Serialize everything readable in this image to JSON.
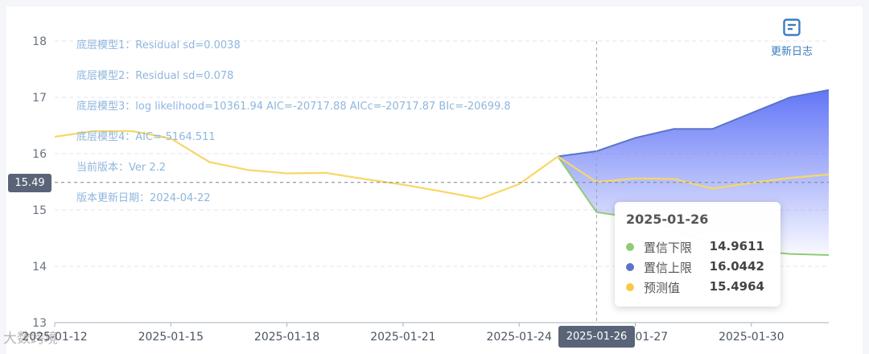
{
  "chart_data": {
    "type": "line",
    "x_ticks": [
      "2025-01-12",
      "2025-01-15",
      "2025-01-18",
      "2025-01-21",
      "2025-01-24",
      "2025-01-27",
      "2025-01-30"
    ],
    "y_ticks": [
      13,
      14,
      15,
      16,
      17,
      18
    ],
    "ylim": [
      13,
      18
    ],
    "xlim": [
      "2025-01-12",
      "2025-02-01"
    ],
    "series": [
      {
        "name": "预测值",
        "color": "#f7d766",
        "x": [
          "2025-01-12",
          "2025-01-13",
          "2025-01-14",
          "2025-01-15",
          "2025-01-16",
          "2025-01-17",
          "2025-01-18",
          "2025-01-19",
          "2025-01-20",
          "2025-01-21",
          "2025-01-22",
          "2025-01-23",
          "2025-01-24",
          "2025-01-25",
          "2025-01-26",
          "2025-01-27",
          "2025-01-28",
          "2025-01-29",
          "2025-01-30",
          "2025-01-31",
          "2025-02-01"
        ],
        "y": [
          16.3,
          16.4,
          16.4,
          16.27,
          15.85,
          15.71,
          15.65,
          15.66,
          15.55,
          15.45,
          15.33,
          15.2,
          15.46,
          15.95,
          15.4964,
          15.56,
          15.55,
          15.38,
          15.48,
          15.57,
          15.63
        ]
      },
      {
        "name": "置信上限",
        "color": "#5b74c9",
        "x": [
          "2025-01-25",
          "2025-01-26",
          "2025-01-27",
          "2025-01-28",
          "2025-01-29",
          "2025-01-30",
          "2025-01-31",
          "2025-02-01"
        ],
        "y": [
          15.95,
          16.0442,
          16.28,
          16.44,
          16.44,
          16.72,
          17.0,
          17.13
        ]
      },
      {
        "name": "置信下限",
        "color": "#91cc75",
        "x": [
          "2025-01-25",
          "2025-01-26",
          "2025-01-27",
          "2025-01-28",
          "2025-01-29",
          "2025-01-30",
          "2025-01-31",
          "2025-02-01"
        ],
        "y": [
          15.95,
          14.9611,
          14.86,
          14.67,
          14.38,
          14.28,
          14.22,
          14.2
        ]
      }
    ],
    "annotations": [
      "底层模型1：Residual sd=0.0038",
      "底层模型2：Residual sd=0.078",
      "底层模型3：log likelihood=10361.94 AIC=-20717.88 AICc=-20717.87 BIc=-20699.8",
      "底层模型4：AIC=-5164.511",
      "当前版本：Ver 2.2",
      "版本更新日期：2024-04-22"
    ],
    "crosshair": {
      "x": "2025-01-26",
      "y_label": "15.49",
      "x_label": "2025-01-26"
    },
    "grid": true,
    "legend": "none"
  },
  "tooltip": {
    "title": "2025-01-26",
    "rows": [
      {
        "name": "置信下限",
        "value": "14.9611",
        "color": "#91cc75"
      },
      {
        "name": "置信上限",
        "value": "16.0442",
        "color": "#5b74c9"
      },
      {
        "name": "预测值",
        "value": "15.4964",
        "color": "#f7c946"
      }
    ]
  },
  "changelog": {
    "label": "更新日志",
    "icon": "document-icon"
  },
  "watermark": "大数跨境"
}
